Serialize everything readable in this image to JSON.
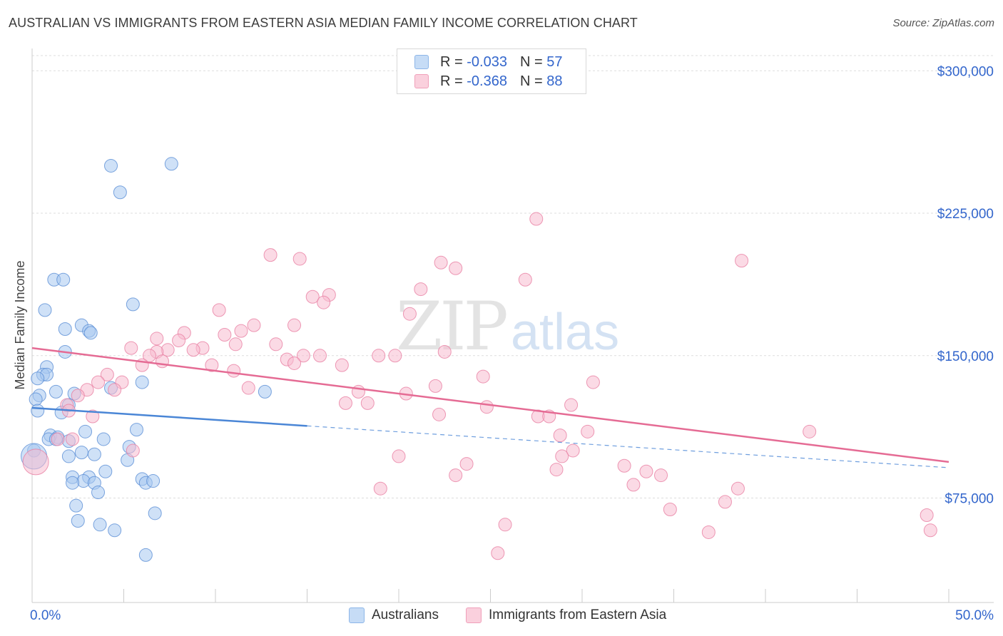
{
  "header": {
    "title": "AUSTRALIAN VS IMMIGRANTS FROM EASTERN ASIA MEDIAN FAMILY INCOME CORRELATION CHART",
    "source": "Source: ZipAtlas.com"
  },
  "stats_legend": [
    {
      "r_label": "R =",
      "r_value": "-0.033",
      "n_label": "N =",
      "n_value": "57",
      "color": "#9dc3f0"
    },
    {
      "r_label": "R =",
      "r_value": "-0.368",
      "n_label": "N =",
      "n_value": "88",
      "color": "#f7b3c8"
    }
  ],
  "bottom_legend": [
    {
      "label": "Australians",
      "color": "#9dc3f0"
    },
    {
      "label": "Immigrants from Eastern Asia",
      "color": "#f7b3c8"
    }
  ],
  "watermark": {
    "zip": "ZIP",
    "atlas": "atlas"
  },
  "chart_data": {
    "type": "scatter",
    "xlabel": "",
    "ylabel": "Median Family Income",
    "xlim": [
      0,
      50
    ],
    "ylim": [
      20000,
      308000
    ],
    "x_tick_labels": [
      {
        "value": 0,
        "label": "0.0%"
      },
      {
        "value": 50,
        "label": "50.0%"
      }
    ],
    "y_ticks": [
      {
        "value": 75000,
        "label": "$75,000"
      },
      {
        "value": 150000,
        "label": "$150,000"
      },
      {
        "value": 225000,
        "label": "$225,000"
      },
      {
        "value": 300000,
        "label": "$300,000"
      }
    ],
    "grid": true,
    "colors": {
      "australians": "#4a86d6",
      "immigrants": "#e56b94",
      "tick_label": "#3366cc"
    },
    "series": [
      {
        "name": "Australians",
        "fill": "#a8c8f0",
        "stroke": "#5b8fd6",
        "trend": {
          "x": [
            0,
            15
          ],
          "y": [
            122500,
            113000
          ],
          "dashed_to": [
            50,
            91000
          ]
        },
        "points": [
          [
            4.3,
            250000
          ],
          [
            7.6,
            251000
          ],
          [
            4.8,
            236000
          ],
          [
            1.2,
            190000
          ],
          [
            1.7,
            190000
          ],
          [
            5.5,
            177000
          ],
          [
            0.7,
            174000
          ],
          [
            2.7,
            166000
          ],
          [
            1.8,
            164000
          ],
          [
            3.1,
            163000
          ],
          [
            3.2,
            162000
          ],
          [
            1.8,
            152000
          ],
          [
            0.8,
            144000
          ],
          [
            0.6,
            140000
          ],
          [
            0.8,
            140000
          ],
          [
            0.3,
            138000
          ],
          [
            6.0,
            136000
          ],
          [
            4.3,
            133000
          ],
          [
            1.3,
            131000
          ],
          [
            0.4,
            129000
          ],
          [
            2.3,
            130000
          ],
          [
            12.7,
            131000
          ],
          [
            0.2,
            127000
          ],
          [
            2.0,
            124000
          ],
          [
            0.3,
            121000
          ],
          [
            1.6,
            120000
          ],
          [
            2.9,
            110000
          ],
          [
            5.7,
            111000
          ],
          [
            1.0,
            108000
          ],
          [
            1.4,
            107000
          ],
          [
            0.9,
            106000
          ],
          [
            1.3,
            106000
          ],
          [
            2.0,
            105000
          ],
          [
            3.9,
            106000
          ],
          [
            5.3,
            102000
          ],
          [
            2.7,
            99000
          ],
          [
            3.4,
            98000
          ],
          [
            2.0,
            97000
          ],
          [
            5.2,
            95000
          ],
          [
            4.0,
            89000
          ],
          [
            2.2,
            86000
          ],
          [
            3.1,
            86000
          ],
          [
            6.0,
            85000
          ],
          [
            2.8,
            84000
          ],
          [
            6.2,
            83000
          ],
          [
            6.6,
            84000
          ],
          [
            2.2,
            83000
          ],
          [
            3.4,
            83000
          ],
          [
            3.6,
            78000
          ],
          [
            2.4,
            71000
          ],
          [
            6.7,
            67000
          ],
          [
            2.5,
            63000
          ],
          [
            3.7,
            61000
          ],
          [
            4.5,
            58000
          ],
          [
            6.2,
            45000
          ],
          [
            0.1,
            100000
          ],
          [
            0.1,
            97000
          ]
        ]
      },
      {
        "name": "Immigrants from Eastern Asia",
        "fill": "#f8bccf",
        "stroke": "#e87fa3",
        "trend": {
          "x": [
            0,
            50
          ],
          "y": [
            154000,
            94000
          ]
        },
        "points": [
          [
            27.5,
            222000
          ],
          [
            13.0,
            203000
          ],
          [
            14.6,
            201000
          ],
          [
            38.7,
            200000
          ],
          [
            22.3,
            199000
          ],
          [
            23.1,
            196000
          ],
          [
            26.9,
            190000
          ],
          [
            21.2,
            185000
          ],
          [
            15.3,
            181000
          ],
          [
            16.2,
            182000
          ],
          [
            15.9,
            178000
          ],
          [
            10.2,
            174000
          ],
          [
            20.6,
            172000
          ],
          [
            12.1,
            166000
          ],
          [
            14.3,
            166000
          ],
          [
            11.4,
            163000
          ],
          [
            8.3,
            162000
          ],
          [
            10.5,
            161000
          ],
          [
            6.8,
            159000
          ],
          [
            8.0,
            158000
          ],
          [
            11.1,
            156000
          ],
          [
            9.3,
            154000
          ],
          [
            13.3,
            156000
          ],
          [
            5.4,
            154000
          ],
          [
            7.4,
            153000
          ],
          [
            8.8,
            153000
          ],
          [
            6.8,
            152000
          ],
          [
            22.5,
            152000
          ],
          [
            6.4,
            150000
          ],
          [
            14.8,
            150000
          ],
          [
            15.7,
            150000
          ],
          [
            18.9,
            150000
          ],
          [
            19.8,
            150000
          ],
          [
            13.9,
            148000
          ],
          [
            7.1,
            147000
          ],
          [
            14.3,
            146000
          ],
          [
            6.0,
            145000
          ],
          [
            9.8,
            145000
          ],
          [
            16.9,
            145000
          ],
          [
            11.0,
            142000
          ],
          [
            4.1,
            140000
          ],
          [
            24.6,
            139000
          ],
          [
            3.6,
            136000
          ],
          [
            4.9,
            136000
          ],
          [
            30.6,
            136000
          ],
          [
            22.0,
            134000
          ],
          [
            11.8,
            133000
          ],
          [
            3.0,
            132000
          ],
          [
            4.5,
            132000
          ],
          [
            17.8,
            131000
          ],
          [
            20.4,
            130000
          ],
          [
            2.5,
            129000
          ],
          [
            1.9,
            124000
          ],
          [
            17.1,
            125000
          ],
          [
            18.3,
            125000
          ],
          [
            29.4,
            124000
          ],
          [
            24.8,
            123000
          ],
          [
            2.0,
            121000
          ],
          [
            22.2,
            119000
          ],
          [
            3.3,
            118000
          ],
          [
            27.6,
            118000
          ],
          [
            28.2,
            118000
          ],
          [
            30.3,
            110000
          ],
          [
            42.4,
            110000
          ],
          [
            28.8,
            108000
          ],
          [
            1.4,
            106000
          ],
          [
            2.2,
            106000
          ],
          [
            5.5,
            100000
          ],
          [
            29.5,
            100000
          ],
          [
            28.9,
            97000
          ],
          [
            20.0,
            97000
          ],
          [
            23.7,
            93000
          ],
          [
            32.3,
            92000
          ],
          [
            33.5,
            89000
          ],
          [
            28.6,
            90000
          ],
          [
            34.3,
            87000
          ],
          [
            23.1,
            87000
          ],
          [
            32.8,
            82000
          ],
          [
            38.5,
            80000
          ],
          [
            19.0,
            80000
          ],
          [
            37.8,
            73000
          ],
          [
            34.8,
            69000
          ],
          [
            48.8,
            66000
          ],
          [
            49.0,
            58000
          ],
          [
            25.8,
            61000
          ],
          [
            36.9,
            57000
          ],
          [
            25.4,
            46000
          ],
          [
            0.2,
            94000
          ]
        ]
      }
    ]
  }
}
